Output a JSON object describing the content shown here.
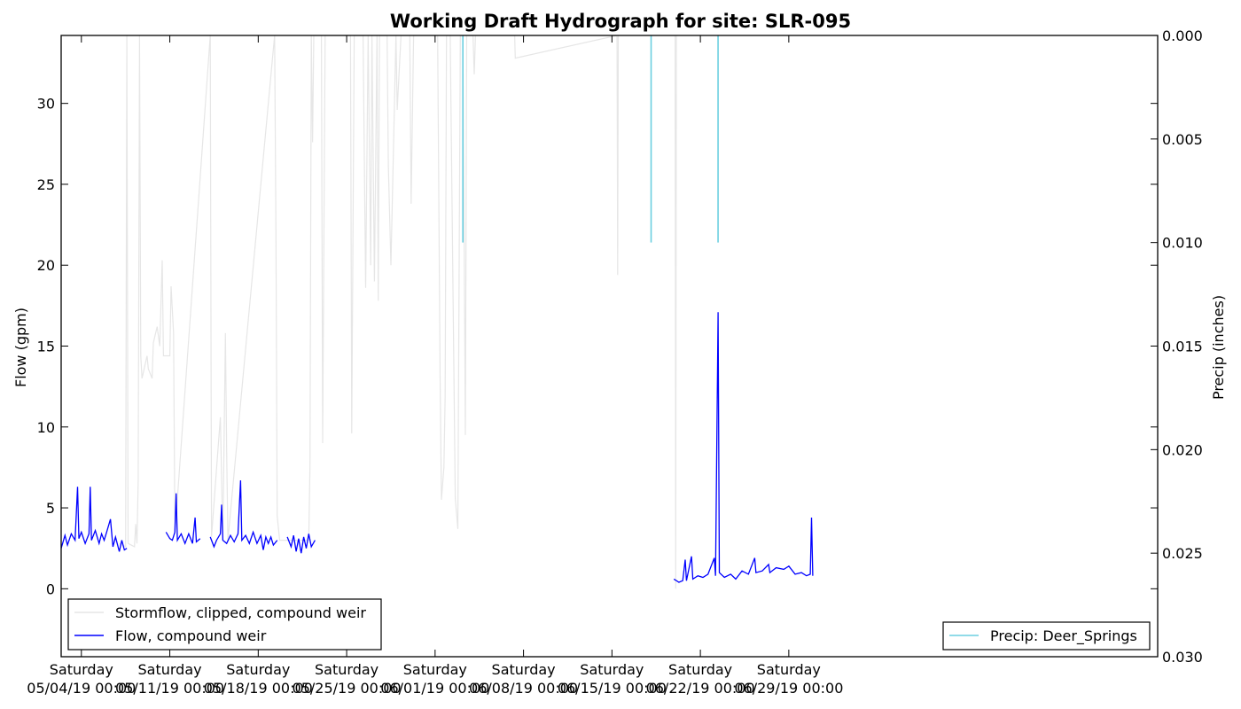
{
  "chart_data": {
    "type": "line",
    "title": "Working Draft Hydrograph for site: SLR-095",
    "ylabel": "Flow (gpm)",
    "y2label": "Precip (inches)",
    "ylim": [
      -4.2,
      34.2
    ],
    "y2lim": [
      0.03,
      0.0
    ],
    "y2_inverted": true,
    "xlim_days": [
      -1.6,
      85.2
    ],
    "yticks": [
      {
        "value": 0,
        "label": "0"
      },
      {
        "value": 5,
        "label": "5"
      },
      {
        "value": 10,
        "label": "10"
      },
      {
        "value": 15,
        "label": "15"
      },
      {
        "value": 20,
        "label": "20"
      },
      {
        "value": 25,
        "label": "25"
      },
      {
        "value": 30,
        "label": "30"
      }
    ],
    "y2ticks": [
      {
        "value": 0.0,
        "label": "0.000"
      },
      {
        "value": 0.005,
        "label": "0.005"
      },
      {
        "value": 0.01,
        "label": "0.010"
      },
      {
        "value": 0.015,
        "label": "0.015"
      },
      {
        "value": 0.02,
        "label": "0.020"
      },
      {
        "value": 0.025,
        "label": "0.025"
      },
      {
        "value": 0.03,
        "label": "0.030"
      }
    ],
    "xticks": [
      {
        "day": 0,
        "line1": "Saturday",
        "line2": "05/04/19 00:00"
      },
      {
        "day": 7,
        "line1": "Saturday",
        "line2": "05/11/19 00:00"
      },
      {
        "day": 14,
        "line1": "Saturday",
        "line2": "05/18/19 00:00"
      },
      {
        "day": 21,
        "line1": "Saturday",
        "line2": "05/25/19 00:00"
      },
      {
        "day": 28,
        "line1": "Saturday",
        "line2": "06/01/19 00:00"
      },
      {
        "day": 35,
        "line1": "Saturday",
        "line2": "06/08/19 00:00"
      },
      {
        "day": 42,
        "line1": "Saturday",
        "line2": "06/15/19 00:00"
      },
      {
        "day": 49,
        "line1": "Saturday",
        "line2": "06/22/19 00:00"
      },
      {
        "day": 56,
        "line1": "Saturday",
        "line2": "06/29/19 00:00"
      }
    ],
    "series": [
      {
        "name": "Stormflow, clipped, compound weir",
        "color": "#e6e6e6",
        "axis": "left",
        "points": [
          [
            3.0,
            2.8
          ],
          [
            3.5,
            2.6
          ],
          [
            3.6,
            34.2
          ],
          [
            3.7,
            2.8
          ],
          [
            4.2,
            2.6
          ],
          [
            4.3,
            4.0
          ],
          [
            4.4,
            2.8
          ],
          [
            4.5,
            6.7
          ],
          [
            4.6,
            34.2
          ],
          [
            4.7,
            14.4
          ],
          [
            4.8,
            13.0
          ],
          [
            5.2,
            14.4
          ],
          [
            5.3,
            13.6
          ],
          [
            5.6,
            13.0
          ],
          [
            5.7,
            15.2
          ],
          [
            6.0,
            16.2
          ],
          [
            6.2,
            15.0
          ],
          [
            6.4,
            20.3
          ],
          [
            6.5,
            14.4
          ],
          [
            7.0,
            14.4
          ],
          [
            7.1,
            18.7
          ],
          [
            7.3,
            15.8
          ],
          [
            7.4,
            3.4
          ],
          [
            10.2,
            34.2
          ],
          [
            10.3,
            3.2
          ],
          [
            11.0,
            10.6
          ],
          [
            11.2,
            3.0
          ],
          [
            11.4,
            15.8
          ],
          [
            11.5,
            8.5
          ],
          [
            11.6,
            3.0
          ],
          [
            15.3,
            34.2
          ],
          [
            15.4,
            22.0
          ],
          [
            15.5,
            4.5
          ],
          [
            15.7,
            3.0
          ],
          [
            18.0,
            3.0
          ],
          [
            18.1,
            7.6
          ],
          [
            18.2,
            34.2
          ],
          [
            18.3,
            27.6
          ],
          [
            18.4,
            34.2
          ],
          [
            19.0,
            34.2
          ],
          [
            19.1,
            9.0
          ],
          [
            19.3,
            34.2
          ],
          [
            21.3,
            34.2
          ],
          [
            21.4,
            9.6
          ],
          [
            21.6,
            34.2
          ],
          [
            22.3,
            34.2
          ],
          [
            22.5,
            18.6
          ],
          [
            22.7,
            34.2
          ],
          [
            22.9,
            20.0
          ],
          [
            23.0,
            34.2
          ],
          [
            23.2,
            19.0
          ],
          [
            23.4,
            34.2
          ],
          [
            23.5,
            17.8
          ],
          [
            23.6,
            34.2
          ],
          [
            24.2,
            34.2
          ],
          [
            24.3,
            26.2
          ],
          [
            24.5,
            20.0
          ],
          [
            24.7,
            27.0
          ],
          [
            24.9,
            34.2
          ],
          [
            25.0,
            29.6
          ],
          [
            25.3,
            34.2
          ],
          [
            26.0,
            34.2
          ],
          [
            26.1,
            23.8
          ],
          [
            26.3,
            34.2
          ],
          [
            28.2,
            34.2
          ],
          [
            28.4,
            13.0
          ],
          [
            28.5,
            5.5
          ],
          [
            28.7,
            7.5
          ],
          [
            28.8,
            12.0
          ],
          [
            28.9,
            34.2
          ],
          [
            29.2,
            34.2
          ],
          [
            29.6,
            5.6
          ],
          [
            29.8,
            3.7
          ],
          [
            30.0,
            34.2
          ],
          [
            30.2,
            34.2
          ],
          [
            30.4,
            9.5
          ],
          [
            30.5,
            34.2
          ],
          [
            31.0,
            34.2
          ],
          [
            31.1,
            31.8
          ],
          [
            31.2,
            34.2
          ],
          [
            34.3,
            34.2
          ],
          [
            34.35,
            32.8
          ],
          [
            42.4,
            34.2
          ],
          [
            42.45,
            19.4
          ],
          [
            42.5,
            34.2
          ],
          [
            47.0,
            34.2
          ],
          [
            47.05,
            0.0
          ],
          [
            47.1,
            34.2
          ]
        ]
      },
      {
        "name": "Flow, compound weir",
        "color": "#0000ff",
        "axis": "left",
        "segments": [
          {
            "points": [
              [
                -1.6,
                2.5
              ],
              [
                -1.3,
                3.3
              ],
              [
                -1.1,
                2.7
              ],
              [
                -0.8,
                3.4
              ],
              [
                -0.5,
                3.0
              ],
              [
                -0.3,
                6.3
              ],
              [
                -0.2,
                3.1
              ],
              [
                0.0,
                3.5
              ],
              [
                0.3,
                2.8
              ],
              [
                0.6,
                3.4
              ],
              [
                0.7,
                6.3
              ],
              [
                0.8,
                3.0
              ],
              [
                1.1,
                3.6
              ],
              [
                1.4,
                2.8
              ],
              [
                1.6,
                3.4
              ],
              [
                1.8,
                3.0
              ],
              [
                2.0,
                3.5
              ],
              [
                2.3,
                4.3
              ],
              [
                2.5,
                2.6
              ],
              [
                2.7,
                3.2
              ],
              [
                3.0,
                2.3
              ],
              [
                3.2,
                3.0
              ],
              [
                3.4,
                2.4
              ],
              [
                3.6,
                2.5
              ]
            ]
          },
          {
            "points": [
              [
                6.7,
                3.5
              ],
              [
                7.0,
                3.1
              ],
              [
                7.2,
                3.0
              ],
              [
                7.4,
                3.5
              ],
              [
                7.5,
                5.9
              ],
              [
                7.6,
                3.0
              ],
              [
                7.9,
                3.4
              ],
              [
                8.2,
                2.8
              ],
              [
                8.5,
                3.4
              ],
              [
                8.8,
                2.8
              ],
              [
                9.0,
                4.4
              ],
              [
                9.1,
                2.9
              ],
              [
                9.4,
                3.1
              ]
            ]
          },
          {
            "points": [
              [
                10.2,
                3.2
              ],
              [
                10.5,
                2.6
              ],
              [
                10.7,
                3.0
              ],
              [
                11.0,
                3.4
              ],
              [
                11.1,
                5.2
              ],
              [
                11.2,
                3.0
              ],
              [
                11.5,
                2.8
              ],
              [
                11.8,
                3.3
              ],
              [
                12.1,
                2.9
              ],
              [
                12.4,
                3.4
              ],
              [
                12.6,
                6.7
              ],
              [
                12.7,
                3.0
              ],
              [
                13.0,
                3.3
              ],
              [
                13.3,
                2.8
              ],
              [
                13.6,
                3.5
              ],
              [
                13.9,
                2.8
              ],
              [
                14.2,
                3.3
              ],
              [
                14.4,
                2.4
              ],
              [
                14.6,
                3.2
              ],
              [
                14.8,
                2.8
              ],
              [
                15.0,
                3.2
              ],
              [
                15.2,
                2.7
              ],
              [
                15.5,
                3.0
              ]
            ]
          },
          {
            "points": [
              [
                16.3,
                3.2
              ],
              [
                16.6,
                2.6
              ],
              [
                16.8,
                3.3
              ],
              [
                17.0,
                2.3
              ],
              [
                17.2,
                3.1
              ],
              [
                17.4,
                2.2
              ],
              [
                17.6,
                3.2
              ],
              [
                17.8,
                2.5
              ],
              [
                18.0,
                3.4
              ],
              [
                18.2,
                2.6
              ],
              [
                18.5,
                3.0
              ]
            ]
          },
          {
            "points": [
              [
                46.9,
                0.6
              ],
              [
                47.3,
                0.4
              ],
              [
                47.6,
                0.5
              ],
              [
                47.8,
                1.8
              ],
              [
                47.9,
                0.5
              ],
              [
                48.3,
                2.0
              ],
              [
                48.4,
                0.6
              ],
              [
                48.8,
                0.8
              ],
              [
                49.2,
                0.7
              ],
              [
                49.6,
                0.9
              ],
              [
                50.1,
                1.9
              ],
              [
                50.2,
                0.8
              ],
              [
                50.4,
                17.1
              ],
              [
                50.5,
                1.0
              ],
              [
                50.9,
                0.7
              ],
              [
                51.4,
                0.9
              ],
              [
                51.8,
                0.6
              ],
              [
                52.3,
                1.1
              ],
              [
                52.8,
                0.9
              ],
              [
                53.3,
                1.9
              ],
              [
                53.4,
                1.0
              ],
              [
                53.9,
                1.1
              ],
              [
                54.4,
                1.5
              ],
              [
                54.5,
                1.0
              ],
              [
                55.0,
                1.3
              ],
              [
                55.6,
                1.2
              ],
              [
                56.0,
                1.4
              ],
              [
                56.5,
                0.9
              ],
              [
                57.0,
                1.0
              ],
              [
                57.4,
                0.8
              ],
              [
                57.7,
                0.9
              ],
              [
                57.8,
                4.4
              ],
              [
                57.9,
                0.8
              ]
            ]
          }
        ]
      },
      {
        "name": "Precip: Deer_Springs",
        "color": "#6ccfe0",
        "axis": "right",
        "bars": [
          {
            "day": 30.2,
            "value": 0.01
          },
          {
            "day": 45.1,
            "value": 0.01
          },
          {
            "day": 50.4,
            "value": 0.01
          }
        ]
      }
    ],
    "legend_left": [
      {
        "label": "Stormflow, clipped, compound weir",
        "color": "#e6e6e6"
      },
      {
        "label": "Flow, compound weir",
        "color": "#0000ff"
      }
    ],
    "legend_right": [
      {
        "label": "Precip: Deer_Springs",
        "color": "#6ccfe0"
      }
    ],
    "grid": false,
    "legend_placement_left": "lower-left",
    "legend_placement_right": "lower-right"
  }
}
